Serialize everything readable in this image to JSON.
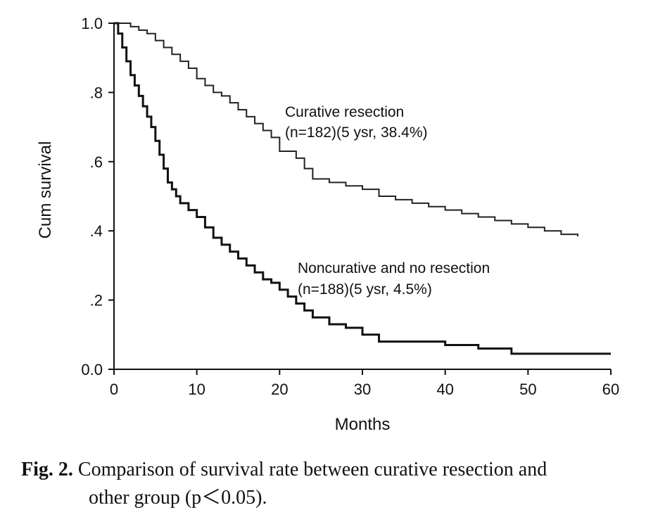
{
  "chart_data": {
    "type": "line",
    "xlabel": "Months",
    "ylabel": "Cum survival",
    "xlim": [
      0,
      60
    ],
    "ylim": [
      0,
      1
    ],
    "xticks": [
      0,
      10,
      20,
      30,
      40,
      50,
      60
    ],
    "xtick_labels": [
      "0",
      "10",
      "20",
      "30",
      "40",
      "50",
      "60"
    ],
    "yticks": [
      0,
      0.2,
      0.4,
      0.6,
      0.8,
      1.0
    ],
    "ytick_labels": [
      "0.0",
      ".2",
      ".4",
      ".6",
      ".8",
      "1.0"
    ],
    "series": [
      {
        "name": "Curative resection",
        "color": "#222222",
        "step": true,
        "x": [
          0,
          2,
          3,
          4,
          5,
          6,
          7,
          8,
          9,
          10,
          11,
          12,
          13,
          14,
          15,
          16,
          17,
          18,
          19,
          20,
          22,
          23,
          24,
          26,
          28,
          30,
          32,
          34,
          36,
          38,
          40,
          42,
          44,
          46,
          48,
          50,
          52,
          54,
          56
        ],
        "y": [
          1.0,
          0.99,
          0.98,
          0.97,
          0.95,
          0.93,
          0.91,
          0.89,
          0.87,
          0.84,
          0.82,
          0.8,
          0.79,
          0.77,
          0.75,
          0.73,
          0.71,
          0.69,
          0.67,
          0.63,
          0.61,
          0.58,
          0.55,
          0.54,
          0.53,
          0.52,
          0.5,
          0.49,
          0.48,
          0.47,
          0.46,
          0.45,
          0.44,
          0.43,
          0.42,
          0.41,
          0.4,
          0.39,
          0.384
        ]
      },
      {
        "name": "Noncurative and no resection",
        "color": "#111111",
        "step": true,
        "x": [
          0,
          0.5,
          1,
          1.5,
          2,
          2.5,
          3,
          3.5,
          4,
          4.5,
          5,
          5.5,
          6,
          6.5,
          7,
          7.5,
          8,
          9,
          10,
          11,
          12,
          13,
          14,
          15,
          16,
          17,
          18,
          19,
          20,
          21,
          22,
          23,
          24,
          26,
          28,
          30,
          32,
          36,
          40,
          44,
          48,
          60
        ],
        "y": [
          1.0,
          0.97,
          0.93,
          0.89,
          0.85,
          0.82,
          0.79,
          0.76,
          0.73,
          0.7,
          0.66,
          0.62,
          0.58,
          0.54,
          0.52,
          0.5,
          0.48,
          0.46,
          0.44,
          0.41,
          0.38,
          0.36,
          0.34,
          0.32,
          0.3,
          0.28,
          0.26,
          0.25,
          0.23,
          0.21,
          0.19,
          0.17,
          0.15,
          0.13,
          0.12,
          0.1,
          0.08,
          0.08,
          0.07,
          0.06,
          0.045,
          0.045
        ]
      }
    ],
    "annotations": [
      {
        "line1": "Curative resection",
        "line2": "(n=182)(5 ysr, 38.4%)"
      },
      {
        "line1": "Noncurative and no resection",
        "line2": "(n=188)(5 ysr, 4.5%)"
      }
    ]
  },
  "caption": {
    "label": "Fig. 2.",
    "line1": "Comparison of survival rate between curative resection and",
    "line2": "other group (p＜0.05)."
  }
}
